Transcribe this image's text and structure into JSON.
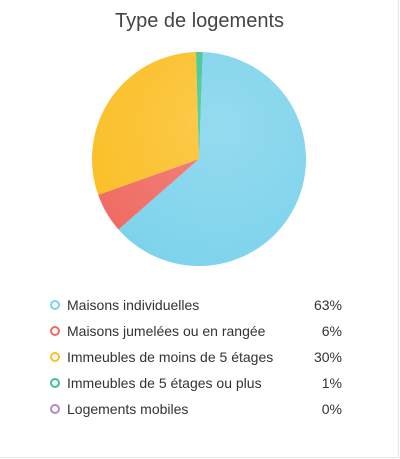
{
  "chart_data": {
    "type": "pie",
    "title": "Type de logements",
    "slices": [
      {
        "label": "Maisons individuelles",
        "value": 63,
        "display": "63%",
        "color": "#7dd3ec"
      },
      {
        "label": "Maisons jumelées ou en rangée",
        "value": 6,
        "display": "6%",
        "color": "#ef6b63"
      },
      {
        "label": "Immeubles de moins de 5 étages",
        "value": 30,
        "display": "30%",
        "color": "#fbbf26"
      },
      {
        "label": "Immeubles de 5 étages ou plus",
        "value": 1,
        "display": "1%",
        "color": "#3ec48e"
      },
      {
        "label": "Logements mobiles",
        "value": 0,
        "display": "0%",
        "color": "#b58bc4"
      }
    ],
    "legend_position": "bottom"
  }
}
